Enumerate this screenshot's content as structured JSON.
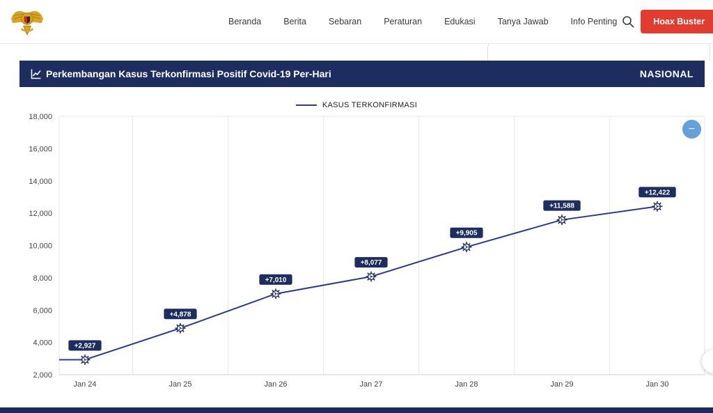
{
  "navbar": {
    "items": [
      "Beranda",
      "Berita",
      "Sebaran",
      "Peraturan",
      "Edukasi",
      "Tanya Jawab",
      "Info Penting"
    ],
    "hoax_buster_label": "Hoax Buster"
  },
  "banner": {
    "title": "Perkembangan Kasus Terkonfirmasi Positif Covid-19 Per-Hari",
    "region_label": "NASIONAL"
  },
  "controls": {
    "collapse_label": "−"
  },
  "chart_data": {
    "type": "line",
    "legend": "KASUS TERKONFIRMASI",
    "categories": [
      "Jan 24",
      "Jan 25",
      "Jan 26",
      "Jan 27",
      "Jan 28",
      "Jan 29",
      "Jan 30"
    ],
    "values": [
      2927,
      4878,
      7010,
      8077,
      9905,
      11588,
      12422
    ],
    "point_labels": [
      "+2,927",
      "+4,878",
      "+7,010",
      "+8,077",
      "+9,905",
      "+11,588",
      "+12,422"
    ],
    "ylim": [
      2000,
      18000
    ],
    "ytick_step": 2000,
    "line_color": "#2a3b8f",
    "marker_color": "#1d2d5f",
    "label_bg": "#1d2d5f",
    "label_text_color": "#ffffff",
    "grid": true,
    "legend_position": "top"
  }
}
